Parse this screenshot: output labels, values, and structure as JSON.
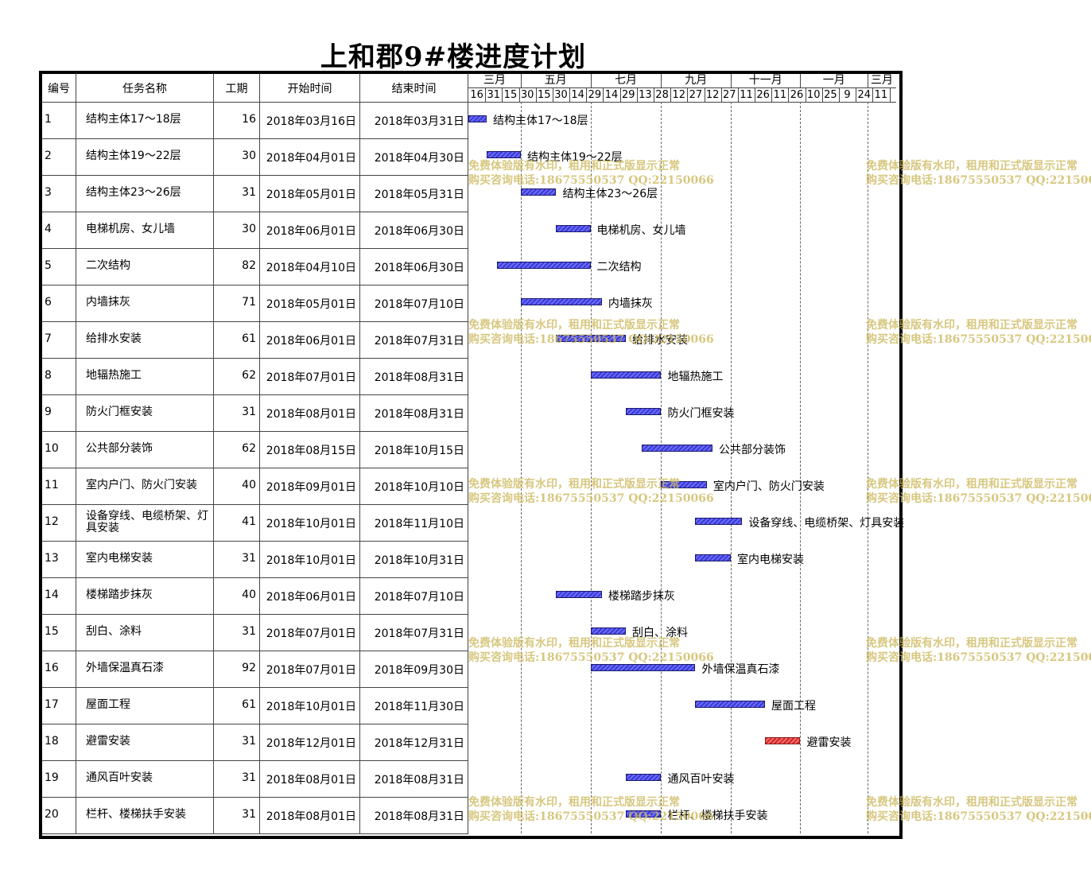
{
  "title": "上和郡9#楼进度计划",
  "header": {
    "col_id": "编号",
    "col_name": "任务名称",
    "col_duration": "工期",
    "col_start": "开始时间",
    "col_end": "结束时间"
  },
  "timescale": {
    "months": [
      {
        "label": "三月",
        "start": "2018-03-01",
        "end": "2018-05-01"
      },
      {
        "label": "五月",
        "start": "2018-05-01",
        "end": "2018-07-01"
      },
      {
        "label": "七月",
        "start": "2018-07-01",
        "end": "2018-09-01"
      },
      {
        "label": "九月",
        "start": "2018-09-01",
        "end": "2018-11-01"
      },
      {
        "label": "十一月",
        "start": "2018-11-01",
        "end": "2019-01-01"
      },
      {
        "label": "一月",
        "start": "2019-01-01",
        "end": "2019-03-01"
      },
      {
        "label": "三月",
        "start": "2019-03-01",
        "end": "2019-04-01"
      }
    ],
    "day_labels": [
      "16",
      "31",
      "15",
      "30",
      "15",
      "30",
      "14",
      "29",
      "14",
      "29",
      "13",
      "28",
      "12",
      "27",
      "12",
      "27",
      "11",
      "26",
      "11",
      "26",
      "10",
      "25",
      "9",
      "24",
      "11"
    ],
    "axis_start": "2018-03-16",
    "axis_end": "2019-03-26"
  },
  "watermark": {
    "line1": "免费体验版有水印，租用和正式版显示正常",
    "line2": "购买咨询电话:18675550537 QQ:22150066"
  },
  "chart_data": {
    "type": "gantt",
    "title": "上和郡9#楼进度计划",
    "tasks": [
      {
        "id": "1",
        "name": "结构主体17～18层",
        "duration": 16,
        "start_text": "2018年03月16日",
        "end_text": "2018年03月31日",
        "start": "2018-03-16",
        "end": "2018-03-31",
        "color": "#3a3ad0"
      },
      {
        "id": "2",
        "name": "结构主体19～22层",
        "duration": 30,
        "start_text": "2018年04月01日",
        "end_text": "2018年04月30日",
        "start": "2018-04-01",
        "end": "2018-04-30",
        "color": "#3a3ad0"
      },
      {
        "id": "3",
        "name": "结构主体23～26层",
        "duration": 31,
        "start_text": "2018年05月01日",
        "end_text": "2018年05月31日",
        "start": "2018-05-01",
        "end": "2018-05-31",
        "color": "#3a3ad0"
      },
      {
        "id": "4",
        "name": "电梯机房、女儿墙",
        "duration": 30,
        "start_text": "2018年06月01日",
        "end_text": "2018年06月30日",
        "start": "2018-06-01",
        "end": "2018-06-30",
        "color": "#3a3ad0"
      },
      {
        "id": "5",
        "name": "二次结构",
        "duration": 82,
        "start_text": "2018年04月10日",
        "end_text": "2018年06月30日",
        "start": "2018-04-10",
        "end": "2018-06-30",
        "color": "#3a3ad0"
      },
      {
        "id": "6",
        "name": "内墙抹灰",
        "duration": 71,
        "start_text": "2018年05月01日",
        "end_text": "2018年07月10日",
        "start": "2018-05-01",
        "end": "2018-07-10",
        "color": "#3a3ad0"
      },
      {
        "id": "7",
        "name": "给排水安装",
        "duration": 61,
        "start_text": "2018年06月01日",
        "end_text": "2018年07月31日",
        "start": "2018-06-01",
        "end": "2018-07-31",
        "color": "#3a3ad0"
      },
      {
        "id": "8",
        "name": "地辐热施工",
        "duration": 62,
        "start_text": "2018年07月01日",
        "end_text": "2018年08月31日",
        "start": "2018-07-01",
        "end": "2018-08-31",
        "color": "#3a3ad0"
      },
      {
        "id": "9",
        "name": "防火门框安装",
        "duration": 31,
        "start_text": "2018年08月01日",
        "end_text": "2018年08月31日",
        "start": "2018-08-01",
        "end": "2018-08-31",
        "color": "#3a3ad0"
      },
      {
        "id": "10",
        "name": "公共部分装饰",
        "duration": 62,
        "start_text": "2018年08月15日",
        "end_text": "2018年10月15日",
        "start": "2018-08-15",
        "end": "2018-10-15",
        "color": "#3a3ad0"
      },
      {
        "id": "11",
        "name": "室内户门、防火门安装",
        "duration": 40,
        "start_text": "2018年09月01日",
        "end_text": "2018年10月10日",
        "start": "2018-09-01",
        "end": "2018-10-10",
        "color": "#3a3ad0"
      },
      {
        "id": "12",
        "name": "设备穿线、电缆桥架、灯具安装",
        "duration": 41,
        "start_text": "2018年10月01日",
        "end_text": "2018年11月10日",
        "start": "2018-10-01",
        "end": "2018-11-10",
        "color": "#3a3ad0"
      },
      {
        "id": "13",
        "name": "室内电梯安装",
        "duration": 31,
        "start_text": "2018年10月01日",
        "end_text": "2018年10月31日",
        "start": "2018-10-01",
        "end": "2018-10-31",
        "color": "#3a3ad0"
      },
      {
        "id": "14",
        "name": "楼梯踏步抹灰",
        "duration": 40,
        "start_text": "2018年06月01日",
        "end_text": "2018年07月10日",
        "start": "2018-06-01",
        "end": "2018-07-10",
        "color": "#3a3ad0"
      },
      {
        "id": "15",
        "name": "刮白、涂料",
        "duration": 31,
        "start_text": "2018年07月01日",
        "end_text": "2018年07月31日",
        "start": "2018-07-01",
        "end": "2018-07-31",
        "color": "#3a3ad0"
      },
      {
        "id": "16",
        "name": "外墙保温真石漆",
        "duration": 92,
        "start_text": "2018年07月01日",
        "end_text": "2018年09月30日",
        "start": "2018-07-01",
        "end": "2018-09-30",
        "color": "#3a3ad0"
      },
      {
        "id": "17",
        "name": "屋面工程",
        "duration": 61,
        "start_text": "2018年10月01日",
        "end_text": "2018年11月30日",
        "start": "2018-10-01",
        "end": "2018-11-30",
        "color": "#3a3ad0"
      },
      {
        "id": "18",
        "name": "避雷安装",
        "duration": 31,
        "start_text": "2018年12月01日",
        "end_text": "2018年12月31日",
        "start": "2018-12-01",
        "end": "2018-12-31",
        "color": "#c82828"
      },
      {
        "id": "19",
        "name": "通风百叶安装",
        "duration": 31,
        "start_text": "2018年08月01日",
        "end_text": "2018年08月31日",
        "start": "2018-08-01",
        "end": "2018-08-31",
        "color": "#3a3ad0"
      },
      {
        "id": "20",
        "name": "栏杆、楼梯扶手安装",
        "duration": 31,
        "start_text": "2018年08月01日",
        "end_text": "2018年08月31日",
        "start": "2018-08-01",
        "end": "2018-08-31",
        "color": "#3a3ad0"
      }
    ]
  }
}
